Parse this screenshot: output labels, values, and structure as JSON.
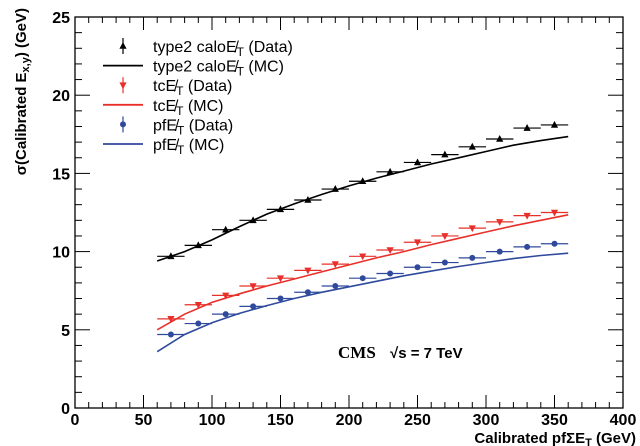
{
  "chart_data": {
    "type": "line",
    "xlabel": "Calibrated pfΣE",
    "xlabel_sub": "T",
    "xlabel_unit": " (GeV)",
    "ylabel": "σ(Calibrated E",
    "ylabel_sub": "x,y",
    "ylabel_unit": ") (GeV)",
    "xlim": [
      0,
      400
    ],
    "ylim": [
      0,
      25
    ],
    "xticks": [
      "0",
      "50",
      "100",
      "150",
      "200",
      "250",
      "300",
      "350",
      "400"
    ],
    "yticks": [
      "0",
      "5",
      "10",
      "15",
      "20",
      "25"
    ],
    "annotation": {
      "experiment": "CMS",
      "energy": "√s = 7 TeV"
    },
    "legend_position": "top-left",
    "series": [
      {
        "name": "type2 caloE̸",
        "name_sub": "T",
        "name_suffix": " (Data)",
        "kind": "data",
        "marker": "triangle-up",
        "color": "#000000",
        "x": [
          70,
          90,
          110,
          130,
          150,
          170,
          190,
          210,
          230,
          250,
          270,
          290,
          310,
          330,
          350
        ],
        "y": [
          9.7,
          10.4,
          11.4,
          12.0,
          12.7,
          13.3,
          14.0,
          14.5,
          15.1,
          15.7,
          16.2,
          16.7,
          17.2,
          17.9,
          18.1
        ]
      },
      {
        "name": "type2 caloE̸",
        "name_sub": "T",
        "name_suffix": " (MC)",
        "kind": "mc",
        "color": "#000000",
        "x": [
          60,
          80,
          100,
          120,
          140,
          160,
          180,
          200,
          220,
          240,
          260,
          280,
          300,
          320,
          340,
          360
        ],
        "y": [
          9.4,
          10.0,
          10.75,
          11.6,
          12.4,
          13.05,
          13.65,
          14.2,
          14.7,
          15.15,
          15.6,
          16.0,
          16.4,
          16.8,
          17.1,
          17.35
        ]
      },
      {
        "name": "tcE̸",
        "name_sub": "T",
        "name_suffix": " (Data)",
        "kind": "data",
        "marker": "triangle-down",
        "color": "#e8302a",
        "x": [
          70,
          90,
          110,
          130,
          150,
          170,
          190,
          210,
          230,
          250,
          270,
          290,
          310,
          330,
          350
        ],
        "y": [
          5.7,
          6.6,
          7.2,
          7.8,
          8.3,
          8.8,
          9.2,
          9.7,
          10.1,
          10.6,
          11.0,
          11.5,
          11.9,
          12.3,
          12.5
        ]
      },
      {
        "name": "tcE̸",
        "name_sub": "T",
        "name_suffix": " (MC)",
        "kind": "mc",
        "color": "#e8302a",
        "x": [
          60,
          80,
          100,
          120,
          140,
          160,
          180,
          200,
          220,
          240,
          260,
          280,
          300,
          320,
          340,
          360
        ],
        "y": [
          5.0,
          6.0,
          6.75,
          7.3,
          7.8,
          8.25,
          8.7,
          9.15,
          9.6,
          10.0,
          10.45,
          10.85,
          11.25,
          11.65,
          12.0,
          12.35
        ]
      },
      {
        "name": "pfE̸",
        "name_sub": "T",
        "name_suffix": " (Data)",
        "kind": "data",
        "marker": "circle",
        "color": "#2f4a9c",
        "x": [
          70,
          90,
          110,
          130,
          150,
          170,
          190,
          210,
          230,
          250,
          270,
          290,
          310,
          330,
          350
        ],
        "y": [
          4.7,
          5.4,
          6.0,
          6.5,
          7.0,
          7.4,
          7.8,
          8.3,
          8.6,
          9.0,
          9.3,
          9.6,
          10.0,
          10.3,
          10.5
        ]
      },
      {
        "name": "pfE̸",
        "name_sub": "T",
        "name_suffix": " (MC)",
        "kind": "mc",
        "color": "#2f4a9c",
        "x": [
          60,
          80,
          100,
          120,
          140,
          160,
          180,
          200,
          220,
          240,
          260,
          280,
          300,
          320,
          340,
          360
        ],
        "y": [
          3.6,
          4.7,
          5.45,
          6.05,
          6.55,
          7.0,
          7.4,
          7.75,
          8.1,
          8.45,
          8.75,
          9.05,
          9.3,
          9.55,
          9.75,
          9.9
        ]
      }
    ]
  }
}
